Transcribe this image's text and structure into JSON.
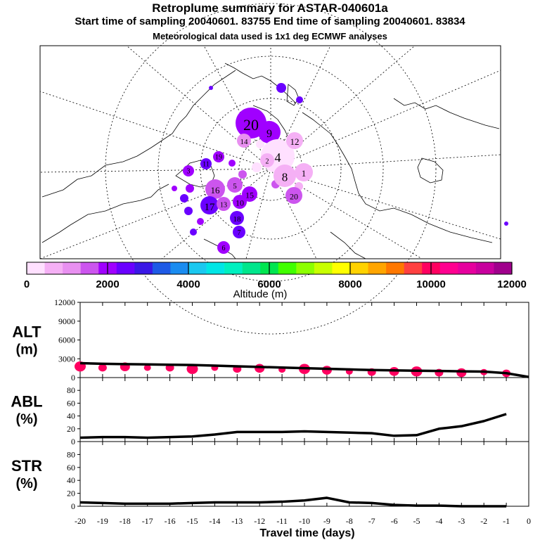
{
  "header": {
    "title": "Retroplume summary for ASTAR-040601a",
    "subtitle": "Start time of sampling 20040601. 83755     End time of sampling 20040601. 83834",
    "met_note": "Meteorological data used is 1x1 deg ECMWF analyses"
  },
  "colorbar": {
    "label": "Altitude (m)",
    "ticks": [
      "0",
      "2000",
      "4000",
      "6000",
      "8000",
      "10000",
      "12000"
    ],
    "colors": [
      "#ffe0ff",
      "#f5b0f5",
      "#e890f0",
      "#cc55ee",
      "#a000ff",
      "#6a00ff",
      "#3a18e6",
      "#1e5ae6",
      "#1a8cf0",
      "#1ac8f0",
      "#00e6e6",
      "#00f0c0",
      "#00e68c",
      "#00e650",
      "#40ff00",
      "#8cff00",
      "#c8ff00",
      "#ffff00",
      "#ffd200",
      "#ffa500",
      "#ff7800",
      "#ff4040",
      "#ff0060",
      "#ff0090",
      "#e6009e",
      "#c8009e",
      "#a0008c"
    ]
  },
  "map": {
    "clusters": [
      {
        "label": "20",
        "color": "#a000ff"
      },
      {
        "label": "9",
        "color": "#a000ff"
      },
      {
        "label": "14",
        "color": "#e890f0"
      },
      {
        "label": "4",
        "color": "#ffe0ff"
      },
      {
        "label": "8",
        "color": "#f5b0f5"
      },
      {
        "label": "12",
        "color": "#f5b0f5"
      },
      {
        "label": "20",
        "color": "#cc55ee"
      },
      {
        "label": "16",
        "color": "#cc55ee"
      },
      {
        "label": "15",
        "color": "#a000ff"
      },
      {
        "label": "18",
        "color": "#6a00ff"
      },
      {
        "label": "17",
        "color": "#6a00ff"
      },
      {
        "label": "13",
        "color": "#cc55ee"
      },
      {
        "label": "5",
        "color": "#cc55ee"
      },
      {
        "label": "10",
        "color": "#a000ff"
      },
      {
        "label": "3",
        "color": "#a000ff"
      },
      {
        "label": "7",
        "color": "#6a00ff"
      },
      {
        "label": "19",
        "color": "#a000ff"
      },
      {
        "label": "11",
        "color": "#6a00ff"
      },
      {
        "label": "2",
        "color": "#f5b0f5"
      },
      {
        "label": "6",
        "color": "#a000ff"
      },
      {
        "label": "1",
        "color": "#f5b0f5"
      }
    ]
  },
  "chart_data": [
    {
      "type": "line",
      "panel": "ALT",
      "ylabel": "ALT\n(m)",
      "ylabel_lines": [
        "ALT",
        "(m)"
      ],
      "ylim": [
        0,
        12000
      ],
      "yticks": [
        0,
        3000,
        6000,
        9000,
        12000
      ],
      "x": [
        -20,
        -19,
        -18,
        -17,
        -16,
        -15,
        -14,
        -13,
        -12,
        -11,
        -10,
        -9,
        -8,
        -7,
        -6,
        -5,
        -4,
        -3,
        -2,
        -1,
        0
      ],
      "values": [
        2300,
        2200,
        2150,
        2100,
        2050,
        2000,
        1900,
        1800,
        1700,
        1600,
        1500,
        1400,
        1300,
        1200,
        1150,
        1100,
        1050,
        1000,
        950,
        700,
        100
      ],
      "marker_color": "#ff0060",
      "marker_values": [
        2000,
        1800,
        1950,
        1800,
        1800,
        1600,
        1800,
        1600,
        1700,
        1500,
        1600,
        1400,
        1200,
        1100,
        1200,
        1200,
        1000,
        1000,
        1100,
        900
      ]
    },
    {
      "type": "line",
      "panel": "ABL",
      "ylabel_lines": [
        "ABL",
        "(%)"
      ],
      "ylim": [
        0,
        100
      ],
      "yticks": [
        0,
        20,
        40,
        60,
        80
      ],
      "x": [
        -20,
        -19,
        -18,
        -17,
        -16,
        -15,
        -14,
        -13,
        -12,
        -11,
        -10,
        -9,
        -8,
        -7,
        -6,
        -5,
        -4,
        -3,
        -2,
        -1
      ],
      "values": [
        6,
        7,
        7,
        6,
        7,
        8,
        11,
        15,
        15,
        15,
        16,
        15,
        14,
        13,
        9,
        10,
        20,
        24,
        32,
        43
      ]
    },
    {
      "type": "line",
      "panel": "STR",
      "ylabel_lines": [
        "STR",
        "(%)"
      ],
      "ylim": [
        0,
        100
      ],
      "yticks": [
        0,
        20,
        40,
        60,
        80
      ],
      "x": [
        -20,
        -19,
        -18,
        -17,
        -16,
        -15,
        -14,
        -13,
        -12,
        -11,
        -10,
        -9,
        -8,
        -7,
        -6,
        -5,
        -4,
        -3,
        -2,
        -1
      ],
      "values": [
        6,
        5,
        4,
        4,
        4,
        5,
        6,
        6,
        6,
        7,
        9,
        13,
        6,
        5,
        2,
        1,
        1,
        0,
        0,
        0
      ]
    }
  ],
  "xaxis": {
    "label": "Travel time (days)",
    "ticks": [
      "-20",
      "-19",
      "-18",
      "-17",
      "-16",
      "-15",
      "-14",
      "-13",
      "-12",
      "-11",
      "-10",
      "-9",
      "-8",
      "-7",
      "-6",
      "-5",
      "-4",
      "-3",
      "-2",
      "-1",
      "0"
    ]
  }
}
